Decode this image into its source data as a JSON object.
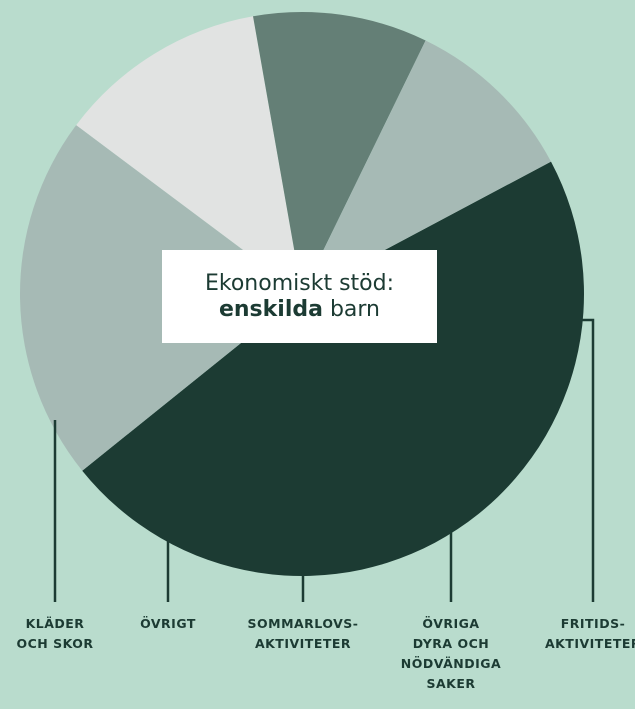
{
  "colors": {
    "background": "#b9dccd",
    "leader_line": "#1c3b33",
    "text": "#1c3b33"
  },
  "chart_data": {
    "type": "pie",
    "title_line1": "Ekonomiskt stöd:",
    "title_bold": "enskilda",
    "title_rest": "barn",
    "slices": [
      {
        "label": "KLÄDER OCH SKOR",
        "label_lines": [
          "KLÄDER",
          "OCH SKOR"
        ],
        "value": 47,
        "color": "#1c3b33"
      },
      {
        "label": "FRITIDS- AKTIVITETER",
        "label_lines": [
          "FRITIDS-",
          "AKTIVITETER"
        ],
        "value": 21,
        "color": "#a6bab5"
      },
      {
        "label": "ÖVRIGA DYRA OCH NÖDVÄNDIGA SAKER",
        "label_lines": [
          "ÖVRIGA",
          "DYRA OCH",
          "NÖDVÄNDIGA",
          "SAKER"
        ],
        "value": 12,
        "color": "#e1e3e2"
      },
      {
        "label": "SOMMARLOVS- AKTIVITETER",
        "label_lines": [
          "SOMMARLOVS-",
          "AKTIVITETER"
        ],
        "value": 10,
        "color": "#647f76"
      },
      {
        "label": "ÖVRIGT",
        "label_lines": [
          "ÖVRIGT"
        ],
        "value": 10,
        "color": "#a6bab5"
      }
    ]
  }
}
